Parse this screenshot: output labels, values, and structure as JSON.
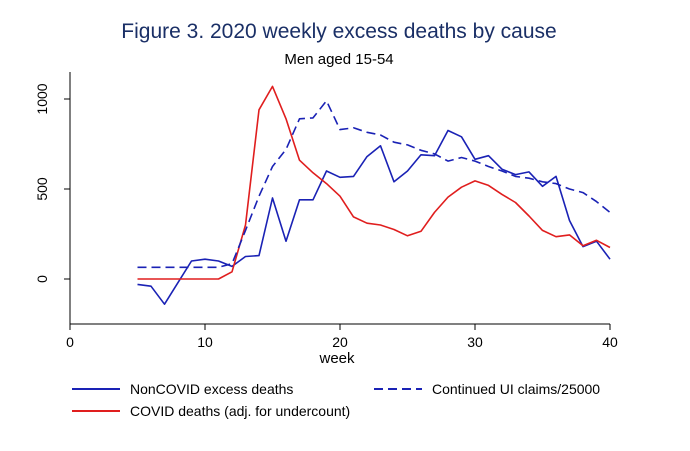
{
  "chart_data": {
    "type": "line",
    "title": "Figure 3.  2020 weekly excess deaths by cause",
    "subtitle": "Men aged 15-54",
    "xlabel": "week",
    "ylabel": "",
    "xlim": [
      0,
      40
    ],
    "ylim": [
      -250,
      1150
    ],
    "xticks": [
      0,
      10,
      20,
      30,
      40
    ],
    "yticks": [
      0,
      500,
      1000
    ],
    "grid": false,
    "legend_position": "bottom",
    "series": [
      {
        "name": "NonCOVID excess deaths",
        "color": "#1a22b5",
        "dash": "solid",
        "x": [
          5,
          6,
          7,
          8,
          9,
          10,
          11,
          12,
          13,
          14,
          15,
          16,
          17,
          18,
          19,
          20,
          21,
          22,
          23,
          24,
          25,
          26,
          27,
          28,
          29,
          30,
          31,
          32,
          33,
          34,
          35,
          36,
          37,
          38,
          39,
          40
        ],
        "y": [
          -30,
          -40,
          -140,
          -20,
          100,
          110,
          100,
          70,
          125,
          130,
          450,
          210,
          440,
          440,
          600,
          565,
          570,
          680,
          740,
          540,
          600,
          690,
          685,
          825,
          790,
          665,
          685,
          610,
          580,
          595,
          515,
          570,
          325,
          180,
          210,
          110
        ]
      },
      {
        "name": "COVID deaths (adj. for undercount)",
        "color": "#e01e1e",
        "dash": "solid",
        "x": [
          5,
          6,
          7,
          8,
          9,
          10,
          11,
          12,
          13,
          14,
          15,
          16,
          17,
          18,
          19,
          20,
          21,
          22,
          23,
          24,
          25,
          26,
          27,
          28,
          29,
          30,
          31,
          32,
          33,
          34,
          35,
          36,
          37,
          38,
          39,
          40
        ],
        "y": [
          0,
          0,
          0,
          0,
          0,
          0,
          0,
          40,
          300,
          940,
          1070,
          890,
          660,
          590,
          530,
          460,
          345,
          310,
          300,
          275,
          240,
          265,
          370,
          455,
          510,
          545,
          520,
          470,
          425,
          350,
          270,
          235,
          245,
          185,
          215,
          175
        ]
      },
      {
        "name": "Continued UI claims/25000",
        "color": "#1a22b5",
        "dash": "dashed",
        "x": [
          5,
          6,
          7,
          8,
          9,
          10,
          11,
          12,
          13,
          14,
          15,
          16,
          17,
          18,
          19,
          20,
          21,
          22,
          23,
          24,
          25,
          26,
          27,
          28,
          29,
          30,
          31,
          32,
          33,
          34,
          35,
          36,
          37,
          38,
          39,
          40
        ],
        "y": [
          65,
          65,
          65,
          65,
          65,
          65,
          65,
          85,
          270,
          460,
          625,
          720,
          890,
          895,
          990,
          830,
          840,
          815,
          800,
          760,
          745,
          715,
          695,
          655,
          675,
          655,
          625,
          600,
          570,
          560,
          540,
          530,
          500,
          480,
          430,
          370
        ]
      }
    ]
  }
}
